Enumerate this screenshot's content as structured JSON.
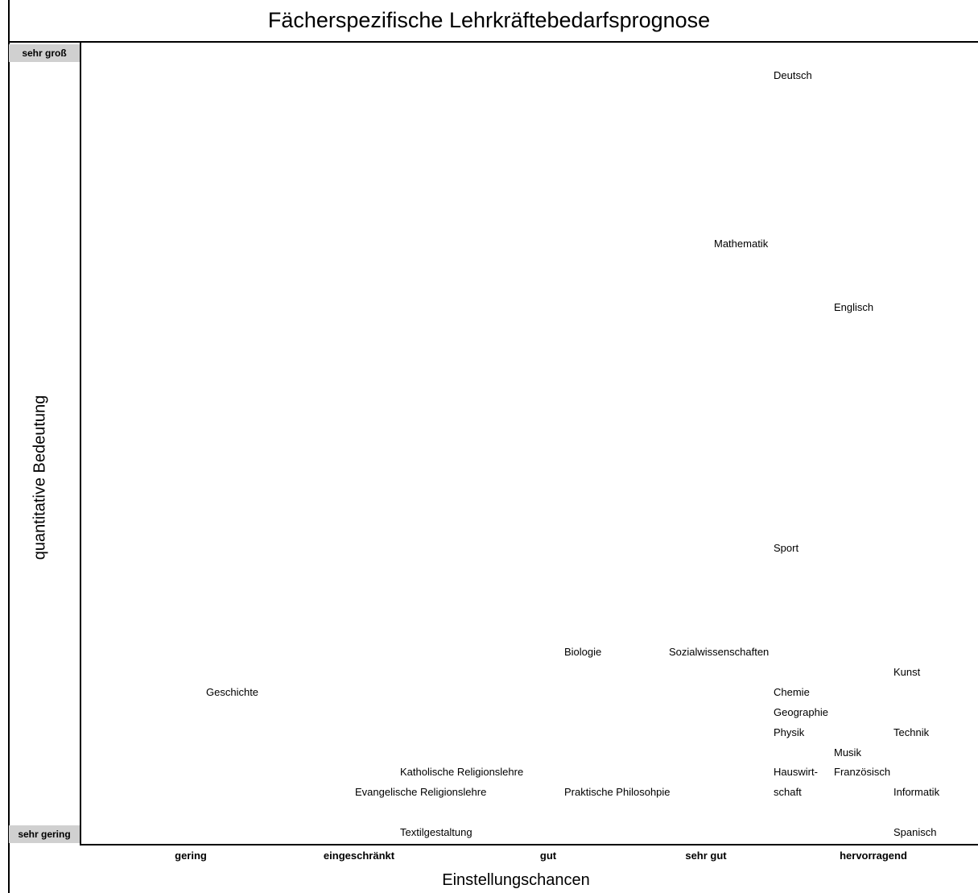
{
  "chart_data": {
    "type": "scatter",
    "title": "Fächerspezifische Lehrkräftebedarfsprognose",
    "xlabel": "Einstellungschancen",
    "ylabel": "quantitative Bedeutung",
    "x_categories": [
      "gering",
      "eingeschränkt",
      "gut",
      "sehr gut",
      "hervorragend"
    ],
    "y_categories": [
      "sehr gering",
      "sehr groß"
    ],
    "xlim": [
      0,
      6
    ],
    "ylim": [
      0,
      100
    ],
    "points": [
      {
        "label": "Deutsch",
        "x": 5.0,
        "y": 96
      },
      {
        "label": "Mathematik",
        "x": 4.6,
        "y": 75
      },
      {
        "label": "Englisch",
        "x": 5.4,
        "y": 67
      },
      {
        "label": "Sport",
        "x": 5.0,
        "y": 37
      },
      {
        "label": "Biologie",
        "x": 3.6,
        "y": 24
      },
      {
        "label": "Sozialwissenschaften",
        "x": 4.3,
        "y": 24
      },
      {
        "label": "Kunst",
        "x": 5.8,
        "y": 21.5
      },
      {
        "label": "Geschichte",
        "x": 1.2,
        "y": 19
      },
      {
        "label": "Chemie",
        "x": 5.0,
        "y": 19
      },
      {
        "label": "Geographie",
        "x": 5.0,
        "y": 16.5
      },
      {
        "label": "Physik",
        "x": 5.0,
        "y": 14
      },
      {
        "label": "Technik",
        "x": 5.8,
        "y": 14
      },
      {
        "label": "Musik",
        "x": 5.4,
        "y": 11.5
      },
      {
        "label": "Katholische Religionslehre",
        "x": 2.5,
        "y": 9
      },
      {
        "label": "Hauswirt-",
        "x": 5.0,
        "y": 9
      },
      {
        "label": "Französisch",
        "x": 5.4,
        "y": 9
      },
      {
        "label": "Evangelische Religionslehre",
        "x": 2.2,
        "y": 6.5
      },
      {
        "label": "Praktische Philosohpie",
        "x": 3.6,
        "y": 6.5
      },
      {
        "label": "schaft",
        "x": 5.0,
        "y": 6.5
      },
      {
        "label": "Informatik",
        "x": 5.8,
        "y": 6.5
      },
      {
        "label": "Textilgestaltung",
        "x": 2.5,
        "y": 1.5
      },
      {
        "label": "Spanisch",
        "x": 5.8,
        "y": 1.5
      }
    ]
  }
}
